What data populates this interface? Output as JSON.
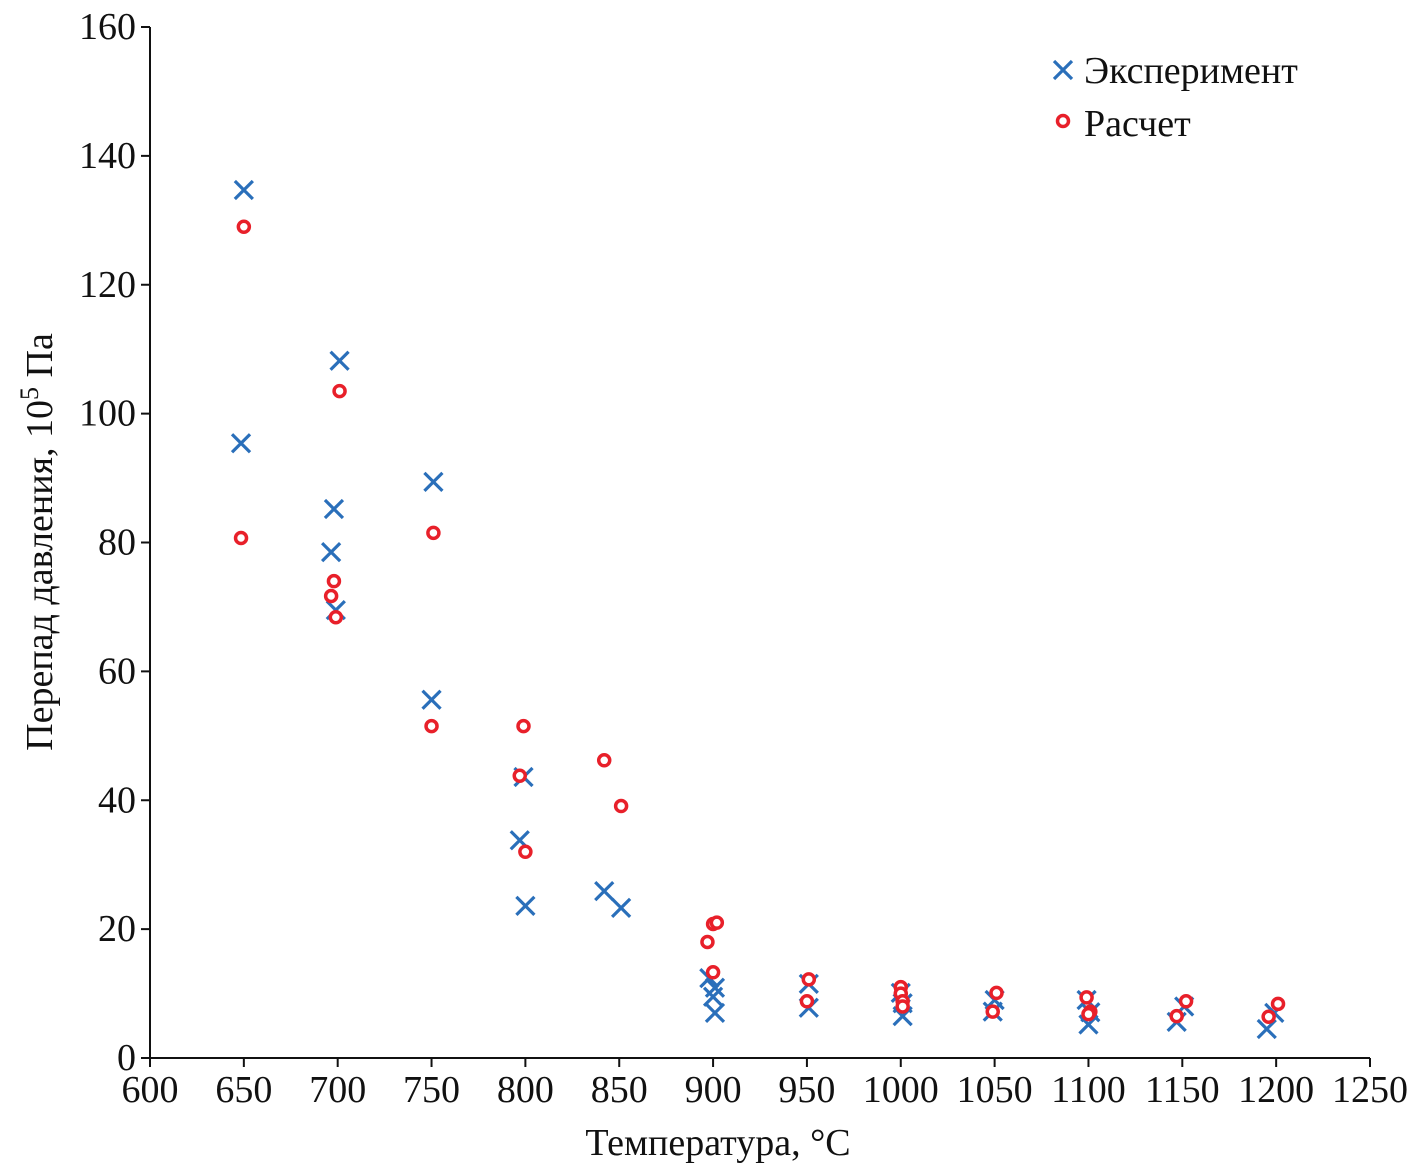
{
  "chart_data": {
    "type": "scatter",
    "xlabel": "Температура, °C",
    "ylabel": "Перепад давления, 10",
    "ylabel_sup": "5",
    "ylabel_unit": " Па",
    "xlim": [
      600,
      1250
    ],
    "ylim": [
      0,
      160
    ],
    "xticks": [
      600,
      650,
      700,
      750,
      800,
      850,
      900,
      950,
      1000,
      1050,
      1100,
      1150,
      1200,
      1250
    ],
    "yticks": [
      0,
      20,
      40,
      60,
      80,
      100,
      120,
      140,
      160
    ],
    "grid": false,
    "legend_position": "top-right",
    "series": [
      {
        "name": "Эксперимент",
        "marker": "x",
        "color": "#2a6fba",
        "points": [
          [
            650,
            134.7
          ],
          [
            648.5,
            95.4
          ],
          [
            701,
            108.2
          ],
          [
            698,
            85.2
          ],
          [
            696.5,
            78.5
          ],
          [
            699,
            69.5
          ],
          [
            751,
            89.4
          ],
          [
            750,
            55.6
          ],
          [
            799,
            43.6
          ],
          [
            797,
            33.8
          ],
          [
            800,
            23.6
          ],
          [
            842,
            25.9
          ],
          [
            851,
            23.3
          ],
          [
            898,
            12.4
          ],
          [
            901,
            10.9
          ],
          [
            900,
            9.5
          ],
          [
            901,
            7.0
          ],
          [
            951,
            11.5
          ],
          [
            951,
            7.8
          ],
          [
            1000,
            10.1
          ],
          [
            1001,
            8.5
          ],
          [
            1001,
            6.5
          ],
          [
            1050,
            9.0
          ],
          [
            1049,
            7.2
          ],
          [
            1099,
            9.0
          ],
          [
            1101,
            7.1
          ],
          [
            1100,
            5.2
          ],
          [
            1151,
            8.0
          ],
          [
            1147,
            5.6
          ],
          [
            1199,
            7.0
          ],
          [
            1195,
            4.5
          ]
        ]
      },
      {
        "name": "Расчет",
        "marker": "o",
        "color": "#e8202a",
        "points": [
          [
            650,
            129.0
          ],
          [
            648.5,
            80.7
          ],
          [
            701,
            103.5
          ],
          [
            698,
            74.0
          ],
          [
            696.5,
            71.7
          ],
          [
            699,
            68.4
          ],
          [
            751,
            81.5
          ],
          [
            750,
            51.5
          ],
          [
            799,
            51.5
          ],
          [
            797,
            43.8
          ],
          [
            800,
            32.0
          ],
          [
            842,
            46.2
          ],
          [
            851,
            39.1
          ],
          [
            900,
            20.8
          ],
          [
            902,
            21.0
          ],
          [
            897,
            18.0
          ],
          [
            900,
            13.3
          ],
          [
            951,
            12.2
          ],
          [
            950,
            8.8
          ],
          [
            1000,
            11.0
          ],
          [
            1000,
            10.0
          ],
          [
            1001,
            8.8
          ],
          [
            1001,
            8.0
          ],
          [
            1051,
            10.1
          ],
          [
            1049,
            7.2
          ],
          [
            1099,
            9.4
          ],
          [
            1101,
            7.2
          ],
          [
            1100,
            6.8
          ],
          [
            1152,
            8.8
          ],
          [
            1147,
            6.5
          ],
          [
            1201,
            8.4
          ],
          [
            1196,
            6.4
          ]
        ]
      }
    ]
  }
}
